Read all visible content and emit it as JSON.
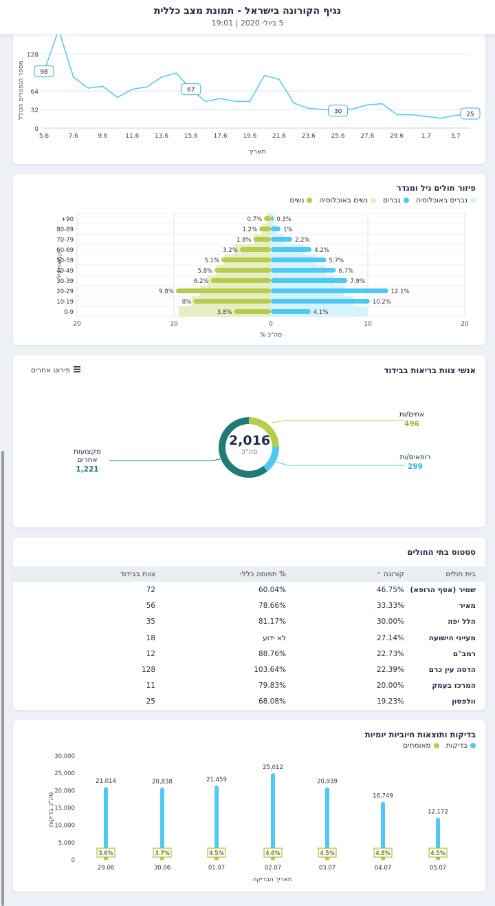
{
  "header": {
    "title": "נגיף הקורונה בישראל - תמונת מצב כללית",
    "subtitle": "5 ביולי 2020 | 19:01"
  },
  "line_card": {
    "ylabel": "מספר הנפטרים הכולל",
    "xlabel": "תאריך"
  },
  "age_card": {
    "title": "פיזור חולים גיל ומגדר",
    "legend": [
      "נברים באוכלוסיה",
      "גברים",
      "נשים באוכלוסיה",
      "נשים"
    ],
    "ylabel": "קבוצת גיל",
    "xlabel": "% סה\"כ"
  },
  "staff_card": {
    "title": "אנשי צוות בריאות בבידוד",
    "detail_button": "פירוט אחרים",
    "total_value": "2,016",
    "total_label": "סה\"כ",
    "segments": [
      {
        "name": "אחים/ות",
        "value": "496"
      },
      {
        "name": "רופאים/ות",
        "value": "299"
      },
      {
        "name": "מקצועות אחרים",
        "value": "1,221"
      }
    ]
  },
  "hospital_card": {
    "title": "סטטוס בתי החולים",
    "columns": [
      "בית חולים",
      "קורונה",
      "% תפוסה כללי",
      "צוות בבידוד"
    ],
    "sort_icon": "chevron-up-icon",
    "rows": [
      {
        "name": "שמיר (אסף הרופא)",
        "corona": "46.75%",
        "occupancy": "60.04%",
        "staff": "72"
      },
      {
        "name": "מאיר",
        "corona": "33.33%",
        "occupancy": "78.66%",
        "staff": "56"
      },
      {
        "name": "הלל יפה",
        "corona": "30.00%",
        "occupancy": "81.17%",
        "staff": "35"
      },
      {
        "name": "מעייני הישועה",
        "corona": "27.14%",
        "occupancy": "לא ידוע",
        "staff": "18"
      },
      {
        "name": "רמב\"ם",
        "corona": "22.73%",
        "occupancy": "88.76%",
        "staff": "12"
      },
      {
        "name": "הדסה עין כרם",
        "corona": "22.39%",
        "occupancy": "103.64%",
        "staff": "128"
      },
      {
        "name": "המרכז בעמק",
        "corona": "20.00%",
        "occupancy": "79.83%",
        "staff": "11"
      },
      {
        "name": "וולפסון",
        "corona": "19.23%",
        "occupancy": "68.08%",
        "staff": "25"
      }
    ]
  },
  "tests_card": {
    "title": "בדיקות ותוצאות חיוביות יומיות",
    "legend": [
      "בדיקות",
      "מאומתים"
    ],
    "ylabel": "סה\"כ בדיקות",
    "xlabel": "תאריך הבדיקה"
  },
  "colors": {
    "blue": "#50c8f4",
    "green": "#b5cc4e",
    "light_blue": "#d6f2fb",
    "light_green": "#e6eec4",
    "teal": "#1f7a78",
    "navy": "#222b45"
  },
  "chart_data": [
    {
      "type": "line",
      "x": [
        "5.6",
        "6.6",
        "7.6",
        "8.6",
        "9.6",
        "10.6",
        "11.6",
        "12.6",
        "13.6",
        "14.6",
        "15.6",
        "16.6",
        "17.6",
        "18.6",
        "19.6",
        "20.6",
        "21.6",
        "22.6",
        "23.6",
        "24.6",
        "25.6",
        "26.6",
        "27.6",
        "28.6",
        "29.6",
        "30.6",
        "1.7",
        "2.7",
        "3.7",
        "4.7"
      ],
      "x_ticks": [
        "5.6",
        "7.6",
        "9.6",
        "11.6",
        "13.6",
        "15.6",
        "17.6",
        "19.6",
        "21.6",
        "23.6",
        "25.6",
        "27.6",
        "29.6",
        "1.7",
        "3.7"
      ],
      "values": [
        98,
        170,
        88,
        69,
        72,
        53,
        67,
        71,
        88,
        95,
        67,
        46,
        51,
        46,
        46,
        91,
        84,
        43,
        34,
        32,
        30,
        33,
        40,
        42,
        23,
        23,
        20,
        17,
        22,
        25
      ],
      "point_labels": [
        {
          "index": 0,
          "label": "98"
        },
        {
          "index": 10,
          "label": "67"
        },
        {
          "index": 20,
          "label": "30"
        },
        {
          "index": 29,
          "label": "25"
        }
      ],
      "y_ticks": [
        0,
        32,
        64,
        128
      ],
      "ylim": [
        0,
        176
      ],
      "xlabel": "תאריך",
      "ylabel": "מספר הנפטרים הכולל",
      "grid": true,
      "color": "#50c8f4"
    },
    {
      "type": "bar",
      "orientation": "horizontal",
      "categories": [
        "+90",
        "80-89",
        "70-79",
        "60-69",
        "50-59",
        "40-49",
        "30-39",
        "20-29",
        "10-19",
        "0-9"
      ],
      "series": [
        {
          "name": "גברים",
          "values": [
            0.3,
            1,
            2.2,
            4.2,
            5.7,
            6.7,
            7.9,
            12.1,
            10.2,
            4.1
          ],
          "labels": [
            "0.3%",
            "1%",
            "2.2%",
            "4.2%",
            "5.7%",
            "6.7%",
            "7.9%",
            "12.1%",
            "10.2%",
            "4.1%"
          ]
        },
        {
          "name": "נשים",
          "values": [
            0.7,
            1.2,
            1.8,
            3.2,
            5.1,
            5.8,
            6.2,
            9.8,
            8,
            3.8
          ],
          "labels": [
            "0.7%",
            "1.2%",
            "1.8%",
            "3.2%",
            "5.1%",
            "5.8%",
            "6.2%",
            "9.8%",
            "8%",
            "3.8%"
          ]
        },
        {
          "name": "נברים באוכלוסיה",
          "values": [
            0.2,
            0.6,
            1.4,
            3.4,
            4.6,
            5.6,
            6.6,
            7.5,
            8.5,
            10.0
          ]
        },
        {
          "name": "נשים באוכלוסיה",
          "values": [
            0.4,
            0.9,
            1.7,
            3.8,
            4.8,
            5.6,
            6.5,
            7.3,
            8.2,
            9.5
          ]
        }
      ],
      "x_ticks": [
        "20",
        "10",
        "0",
        "10",
        "20"
      ],
      "xlim": [
        -20,
        20
      ],
      "xlabel": "% סה\"כ",
      "ylabel": "קבוצת גיל",
      "grid": true
    },
    {
      "type": "pie",
      "labels": [
        "אחים/ות",
        "רופאים/ות",
        "מקצועות אחרים"
      ],
      "values": [
        496,
        299,
        1221
      ],
      "colors": [
        "#b5cc4e",
        "#50c8f4",
        "#1f7a78"
      ],
      "total": "2,016"
    },
    {
      "type": "bar",
      "categories": [
        "29.06",
        "30.06",
        "01.07",
        "02.07",
        "03.07",
        "04.07",
        "05.07"
      ],
      "series": [
        {
          "name": "בדיקות",
          "values": [
            21014,
            20838,
            21459,
            25012,
            20939,
            16749,
            12172
          ],
          "labels": [
            "21,014",
            "20,838",
            "21,459",
            "25,012",
            "20,939",
            "16,749",
            "12,172"
          ]
        },
        {
          "name": "מאומתים",
          "values": [
            756,
            771,
            966,
            1150,
            942,
            804,
            548
          ],
          "labels": [
            "3.6%",
            "3.7%",
            "4.5%",
            "4.6%",
            "4.5%",
            "4.8%",
            "4.5%"
          ]
        }
      ],
      "y_ticks": [
        "0",
        "5,000",
        "10,000",
        "15,000",
        "20,000",
        "25,000",
        "30,000"
      ],
      "ylim": [
        0,
        30000
      ],
      "xlabel": "תאריך הבדיקה",
      "ylabel": "סה\"כ בדיקות"
    }
  ]
}
